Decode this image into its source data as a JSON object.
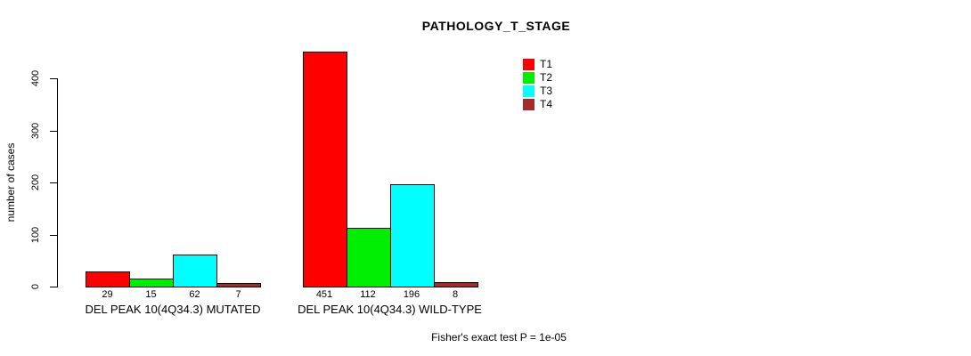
{
  "title": "PATHOLOGY_T_STAGE",
  "footer": "Fisher's exact test P = 1e-05",
  "chart_data": {
    "type": "bar",
    "title": "PATHOLOGY_T_STAGE",
    "xlabel": "",
    "ylabel": "number of cases",
    "ylim": [
      0,
      460
    ],
    "yticks": [
      0,
      100,
      200,
      300,
      400
    ],
    "grid": false,
    "legend_position": "top-right",
    "bar_value_labels": true,
    "categories": [
      "DEL PEAK 10(4Q34.3) MUTATED",
      "DEL PEAK 10(4Q34.3) WILD-TYPE"
    ],
    "series": [
      {
        "name": "T1",
        "color": "#ff0000",
        "values": [
          29,
          451
        ]
      },
      {
        "name": "T2",
        "color": "#00ee00",
        "values": [
          15,
          112
        ]
      },
      {
        "name": "T3",
        "color": "#00ffff",
        "values": [
          62,
          196
        ]
      },
      {
        "name": "T4",
        "color": "#a52a2a",
        "values": [
          7,
          8
        ]
      }
    ],
    "annotation": "Fisher's exact test P = 1e-05"
  }
}
